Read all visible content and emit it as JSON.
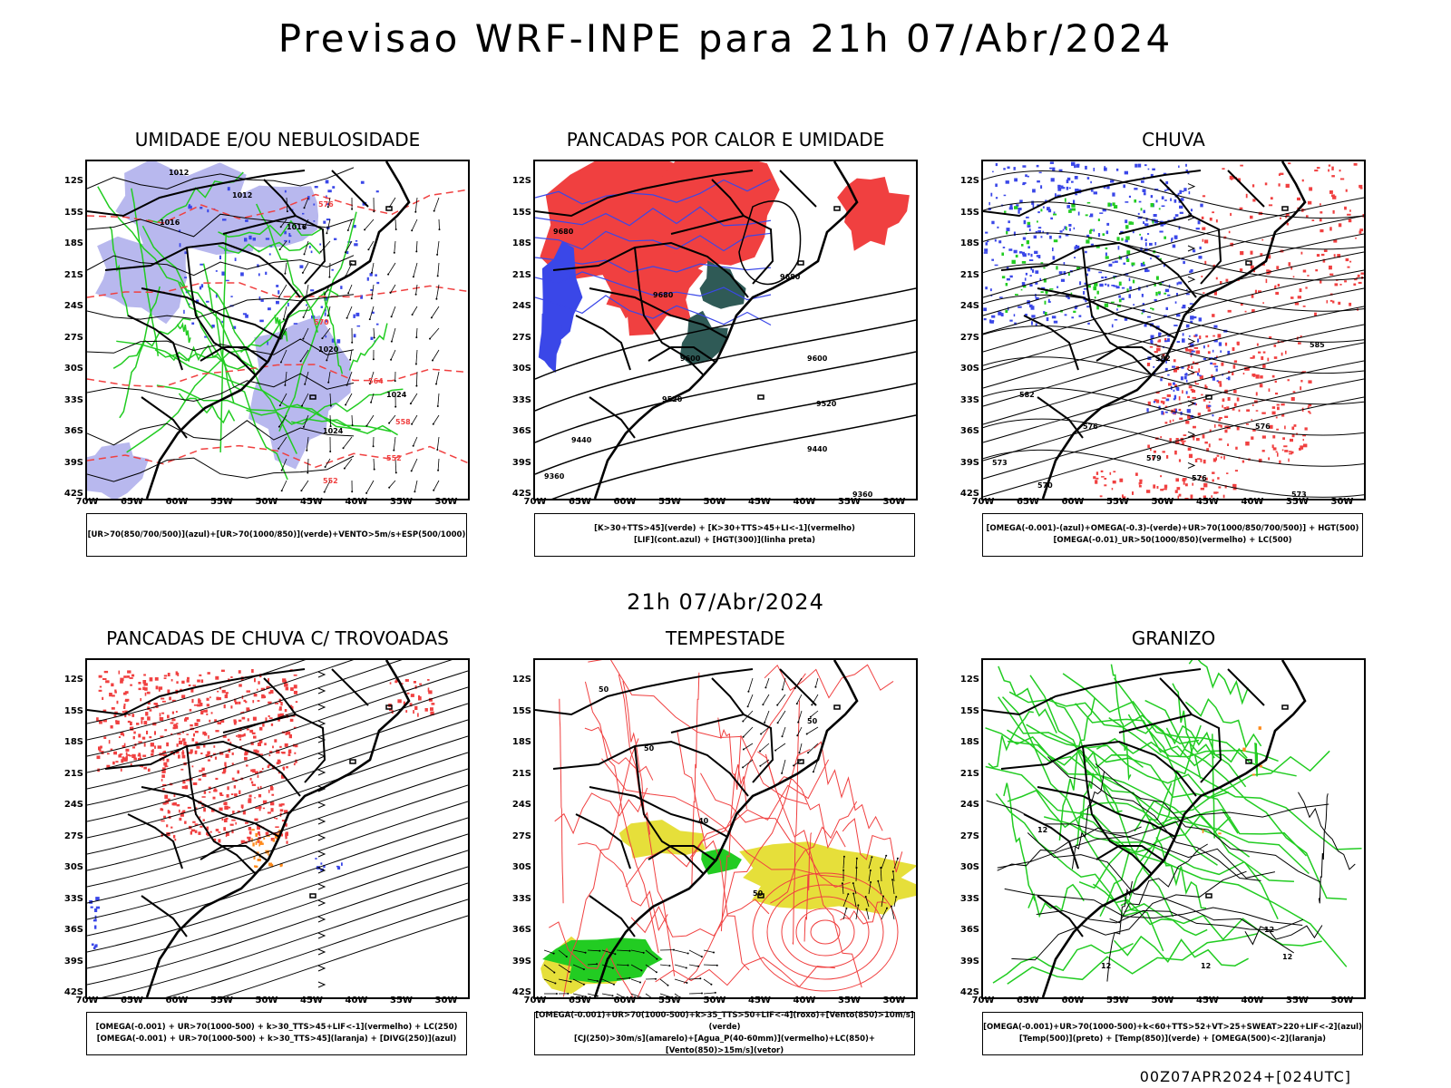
{
  "title": "Previsao WRF-INPE  para 21h 07/Abr/2024",
  "subtitle": "21h 07/Abr/2024",
  "footer": "00Z07APR2024+[024UTC]",
  "axes": {
    "lat": [
      "12S",
      "15S",
      "18S",
      "21S",
      "24S",
      "27S",
      "30S",
      "33S",
      "36S",
      "39S",
      "42S"
    ],
    "lon": [
      "70W",
      "65W",
      "60W",
      "55W",
      "50W",
      "45W",
      "40W",
      "35W",
      "30W"
    ]
  },
  "colors": {
    "blue": "#3a47e8",
    "green": "#22cc22",
    "red": "#f04040",
    "lavender": "#b8b8ee",
    "darkteal": "#2f5a56",
    "yellow": "#e6df3a",
    "orange": "#ff8a1a",
    "black": "#000000"
  },
  "panels": [
    {
      "title": "UMIDADE E/OU NEBULOSIDADE",
      "legend": [
        "[UR>70(850/700/500)](azul)+[UR>70(1000/850)](verde)+VENTO>5m/s+ESP(500/1000)"
      ],
      "labels": [
        "1012",
        "1012",
        "1016",
        "1016",
        "1020",
        "1024",
        "1024",
        "576",
        "570",
        "564",
        "558",
        "552",
        "552"
      ]
    },
    {
      "title": "PANCADAS POR CALOR E UMIDADE",
      "legend": [
        "[K>30+TTS>45](verde) + [K>30+TTS>45+LI<-1](vermelho)",
        "[LIF](cont.azul) + [HGT(300)](linha preta)"
      ],
      "labels": [
        "9680",
        "9680",
        "9680",
        "9600",
        "9600",
        "9520",
        "9520",
        "9440",
        "9440",
        "9360",
        "9360"
      ]
    },
    {
      "title": "CHUVA",
      "legend": [
        "[OMEGA(-0.001)-(azul)+OMEGA(-0.3)-(verde)+UR>70(1000/850/700/500)] + HGT(500)",
        "[OMEGA(-0.01)_UR>50(1000/850)(vermelho) + LC(500)"
      ],
      "labels": [
        "582",
        "585",
        "582",
        "576",
        "576",
        "579",
        "576",
        "573",
        "573",
        "570"
      ]
    },
    {
      "title": "PANCADAS DE CHUVA C/ TROVOADAS",
      "legend": [
        "[OMEGA(-0.001) + UR>70(1000-500) + k>30_TTS>45+LIF<-1](vermelho) + LC(250)",
        "[OMEGA(-0.001) + UR>70(1000-500) + k>30_TTS>45](laranja) + [DIVG(250)](azul)"
      ],
      "labels": []
    },
    {
      "title": "TEMPESTADE",
      "legend": [
        "[OMEGA(-0.001)+UR>70(1000-500)+k>35_TTS>50+LIF<-4](roxo)+[Vento(850)>10m/s](verde)",
        "[CJ(250)>30m/s](amarelo)+[Agua_P(40-60mm)](vermelho)+LC(850)+[Vento(850)>15m/s](vetor)"
      ],
      "labels": [
        "50",
        "50",
        "40",
        "50",
        "50"
      ]
    },
    {
      "title": "GRANIZO",
      "legend": [
        "[OMEGA(-0.001)+UR>70(1000-500)+k<60+TTS>52+VT>25+SWEAT>220+LIF<-2](azul)",
        "[Temp(500)](preto) + [Temp(850)](verde) + [OMEGA(500)<-2](laranja)"
      ],
      "labels": [
        "12",
        "12",
        "12",
        "12",
        "12"
      ]
    }
  ]
}
